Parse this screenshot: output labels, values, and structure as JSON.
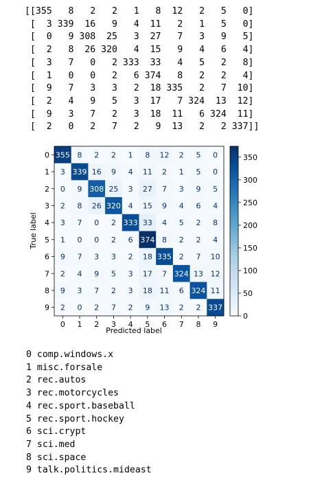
{
  "chart_data": {
    "type": "heatmap",
    "labels": [
      "0",
      "1",
      "2",
      "3",
      "4",
      "5",
      "6",
      "7",
      "8",
      "9"
    ],
    "matrix": [
      [
        355,
        8,
        2,
        2,
        1,
        8,
        12,
        2,
        5,
        0
      ],
      [
        3,
        339,
        16,
        9,
        4,
        11,
        2,
        1,
        5,
        0
      ],
      [
        0,
        9,
        308,
        25,
        3,
        27,
        7,
        3,
        9,
        5
      ],
      [
        2,
        8,
        26,
        320,
        4,
        15,
        9,
        4,
        6,
        4
      ],
      [
        3,
        7,
        0,
        2,
        333,
        33,
        4,
        5,
        2,
        8
      ],
      [
        1,
        0,
        0,
        2,
        6,
        374,
        8,
        2,
        2,
        4
      ],
      [
        9,
        7,
        3,
        3,
        2,
        18,
        335,
        2,
        7,
        10
      ],
      [
        2,
        4,
        9,
        5,
        3,
        17,
        7,
        324,
        13,
        12
      ],
      [
        9,
        3,
        7,
        2,
        3,
        18,
        11,
        6,
        324,
        11
      ],
      [
        2,
        0,
        2,
        7,
        2,
        9,
        13,
        2,
        2,
        337
      ]
    ],
    "xlabel": "Predicted label",
    "ylabel": "True label",
    "colorbar_ticks": [
      0,
      50,
      100,
      150,
      200,
      250,
      300,
      350
    ],
    "value_range": [
      0,
      374
    ],
    "colormap": "Blues",
    "grid": false
  },
  "classes": [
    {
      "index": "0",
      "name": "comp.windows.x"
    },
    {
      "index": "1",
      "name": "misc.forsale"
    },
    {
      "index": "2",
      "name": "rec.autos"
    },
    {
      "index": "3",
      "name": "rec.motorcycles"
    },
    {
      "index": "4",
      "name": "rec.sport.baseball"
    },
    {
      "index": "5",
      "name": "rec.sport.hockey"
    },
    {
      "index": "6",
      "name": "sci.crypt"
    },
    {
      "index": "7",
      "name": "sci.med"
    },
    {
      "index": "8",
      "name": "sci.space"
    },
    {
      "index": "9",
      "name": "talk.politics.mideast"
    }
  ]
}
